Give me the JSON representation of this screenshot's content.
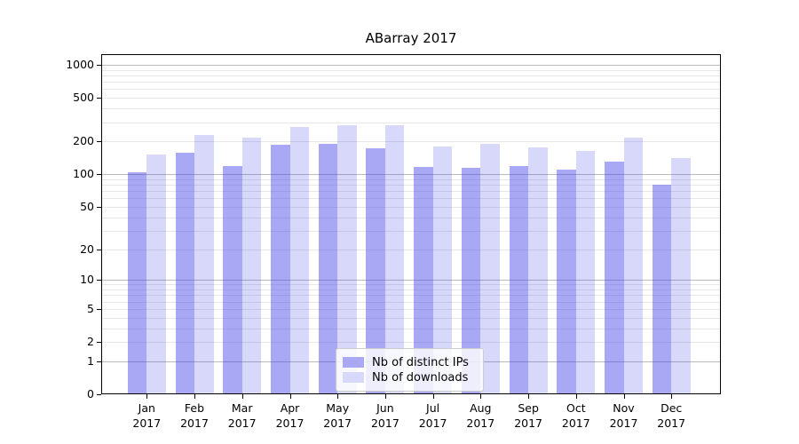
{
  "chart_data": {
    "type": "bar",
    "title": "ABarray 2017",
    "xlabel": "",
    "ylabel": "",
    "y_scale": "log10(value+1)",
    "ylim": [
      0,
      1250
    ],
    "grid": true,
    "legend_position": "inside-bottom-center",
    "yticks": [
      0,
      1,
      2,
      5,
      10,
      20,
      50,
      100,
      200,
      500,
      1000
    ],
    "categories": [
      "Jan",
      "Feb",
      "Mar",
      "Apr",
      "May",
      "Jun",
      "Jul",
      "Aug",
      "Sep",
      "Oct",
      "Nov",
      "Dec"
    ],
    "year": "2017",
    "series": [
      {
        "name": "Nb of distinct IPs",
        "values": [
          105,
          157,
          120,
          185,
          190,
          172,
          117,
          115,
          119,
          111,
          130,
          80
        ],
        "fill": "rgba(62,62,230,0.45)",
        "swatch": "#a8a8f3"
      },
      {
        "name": "Nb of downloads",
        "values": [
          151,
          230,
          218,
          271,
          281,
          280,
          180,
          190,
          177,
          163,
          217,
          140
        ],
        "fill": "rgba(62,62,230,0.20)",
        "swatch": "#d8d8fa"
      }
    ]
  },
  "colors": {
    "grid_minor": "#e7e7e7",
    "grid_major": "#bbbbbb",
    "axis": "#000000",
    "background": "#ffffff"
  }
}
